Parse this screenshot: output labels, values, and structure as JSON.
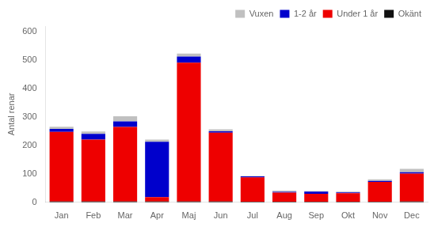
{
  "chart_data": {
    "type": "bar",
    "stacked": true,
    "categories": [
      "Jan",
      "Feb",
      "Mar",
      "Apr",
      "Maj",
      "Jun",
      "Jul",
      "Aug",
      "Sep",
      "Okt",
      "Nov",
      "Dec"
    ],
    "series": [
      {
        "name": "Okänt",
        "color": "#111111",
        "values": [
          3,
          3,
          3,
          3,
          3,
          3,
          2,
          2,
          2,
          2,
          2,
          3
        ]
      },
      {
        "name": "Under 1 år",
        "color": "#EE0000",
        "values": [
          245,
          218,
          262,
          15,
          488,
          242,
          86,
          32,
          28,
          30,
          70,
          98
        ]
      },
      {
        "name": "1-2 år",
        "color": "#0000CC",
        "values": [
          10,
          20,
          20,
          195,
          22,
          5,
          3,
          3,
          8,
          3,
          3,
          5
        ]
      },
      {
        "name": "Vuxen",
        "color": "#C0C0C0",
        "values": [
          8,
          8,
          18,
          8,
          10,
          7,
          2,
          4,
          2,
          3,
          6,
          12
        ]
      }
    ],
    "ylabel": "Antal renar",
    "ylim": [
      0,
      620
    ],
    "yticks": [
      0,
      100,
      200,
      300,
      400,
      500,
      600
    ],
    "legend": "upper right",
    "grid": false
  }
}
